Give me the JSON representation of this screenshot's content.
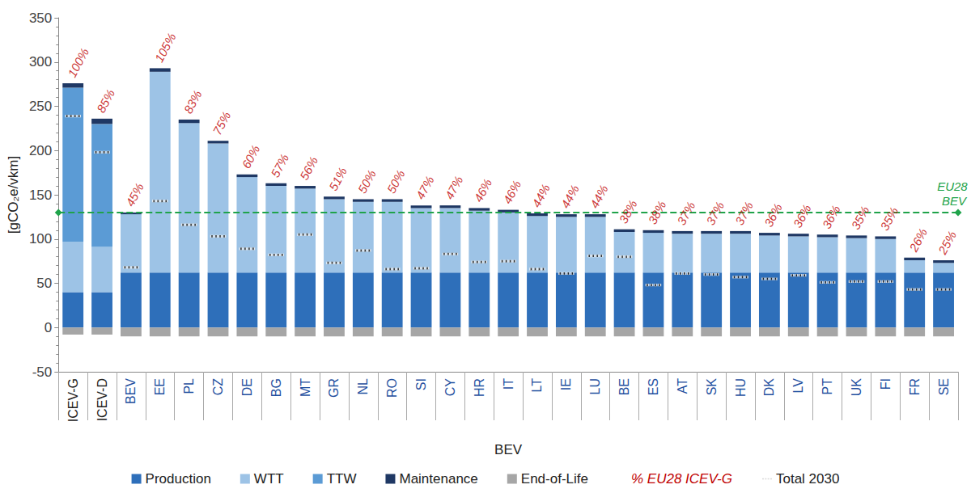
{
  "chart_data": {
    "type": "bar",
    "stacked": true,
    "x_label": "BEV",
    "y_label": "[gCO₂e/vkm]",
    "categories": [
      "ICEV-G",
      "ICEV-D",
      "BEV",
      "EE",
      "PL",
      "CZ",
      "DE",
      "BG",
      "MT",
      "GR",
      "NL",
      "RO",
      "SI",
      "CY",
      "HR",
      "IT",
      "LT",
      "IE",
      "LU",
      "BE",
      "ES",
      "AT",
      "SK",
      "HU",
      "DK",
      "LV",
      "PT",
      "UK",
      "FI",
      "FR",
      "SE"
    ],
    "series": [
      {
        "name": "Production",
        "type": "bar",
        "color": "#2e6fba",
        "values": [
          40,
          40,
          62,
          62,
          62,
          62,
          62,
          62,
          62,
          62,
          62,
          62,
          62,
          62,
          62,
          62,
          62,
          62,
          62,
          62,
          62,
          62,
          62,
          62,
          62,
          62,
          62,
          62,
          62,
          62,
          62
        ]
      },
      {
        "name": "WTT",
        "type": "bar",
        "color": "#9dc3e6",
        "values": [
          57,
          51,
          66,
          227,
          169,
          146,
          108,
          98,
          95,
          83,
          80,
          80,
          73,
          73,
          70,
          68,
          64,
          63,
          63,
          46,
          45,
          44,
          44,
          44,
          42,
          41,
          40,
          39,
          38,
          14,
          11
        ]
      },
      {
        "name": "TTW",
        "type": "bar",
        "color": "#5b9bd5",
        "values": [
          174,
          139,
          null,
          null,
          null,
          null,
          null,
          null,
          null,
          null,
          null,
          null,
          null,
          null,
          null,
          null,
          null,
          null,
          null,
          null,
          null,
          null,
          null,
          null,
          null,
          null,
          null,
          null,
          null,
          null,
          null
        ]
      },
      {
        "name": "Maintenance",
        "type": "bar",
        "color": "#1f3864",
        "values": [
          5,
          6,
          2,
          4,
          4,
          3,
          3,
          3,
          3,
          3,
          3,
          3,
          3,
          3,
          3,
          3,
          3,
          3,
          3,
          3,
          3,
          3,
          3,
          3,
          3,
          3,
          3,
          3,
          3,
          3,
          3
        ]
      },
      {
        "name": "End-of-Life",
        "type": "bar",
        "color": "#a6a6a6",
        "values": [
          -8,
          -8,
          -10,
          -10,
          -10,
          -10,
          -10,
          -10,
          -10,
          -10,
          -10,
          -10,
          -10,
          -10,
          -10,
          -10,
          -10,
          -10,
          -10,
          -10,
          -10,
          -10,
          -10,
          -10,
          -10,
          -10,
          -10,
          -10,
          -10,
          -10,
          -10
        ]
      },
      {
        "name": "% EU28 ICEV-G",
        "type": "scatter",
        "marker": "none",
        "color": "#c00000",
        "data_labels": true,
        "values": [
          100,
          85,
          45,
          105,
          83,
          75,
          60,
          57,
          56,
          51,
          50,
          50,
          47,
          47,
          46,
          46,
          44,
          44,
          44,
          38,
          38,
          37,
          37,
          37,
          36,
          36,
          36,
          35,
          35,
          26,
          25
        ],
        "value_labels": [
          "100%",
          "85%",
          "45%",
          "105%",
          "83%",
          "75%",
          "60%",
          "57%",
          "56%",
          "51%",
          "50%",
          "50%",
          "47%",
          "47%",
          "46%",
          "46%",
          "44%",
          "44%",
          "44%",
          "38%",
          "38%",
          "37%",
          "37%",
          "37%",
          "36%",
          "36%",
          "36%",
          "35%",
          "35%",
          "26%",
          "25%"
        ]
      },
      {
        "name": "Total 2030",
        "type": "scatter",
        "marker": "dash",
        "color": "#111111",
        "values": [
          239,
          198,
          68,
          143,
          116,
          103,
          89,
          82,
          105,
          73,
          87,
          66,
          67,
          83,
          74,
          75,
          66,
          61,
          81,
          80,
          48,
          61,
          60,
          57,
          55,
          59,
          51,
          52,
          52,
          43,
          43
        ]
      }
    ],
    "annotations": [
      {
        "text": "EU28 BEV",
        "y": 130,
        "color": "#1fa34a",
        "line_style": "dashed"
      }
    ],
    "ylim": [
      -50,
      350
    ],
    "yticks": [
      -50,
      0,
      50,
      100,
      150,
      200,
      250,
      300,
      350
    ],
    "grid": false,
    "legend": "bottom"
  }
}
